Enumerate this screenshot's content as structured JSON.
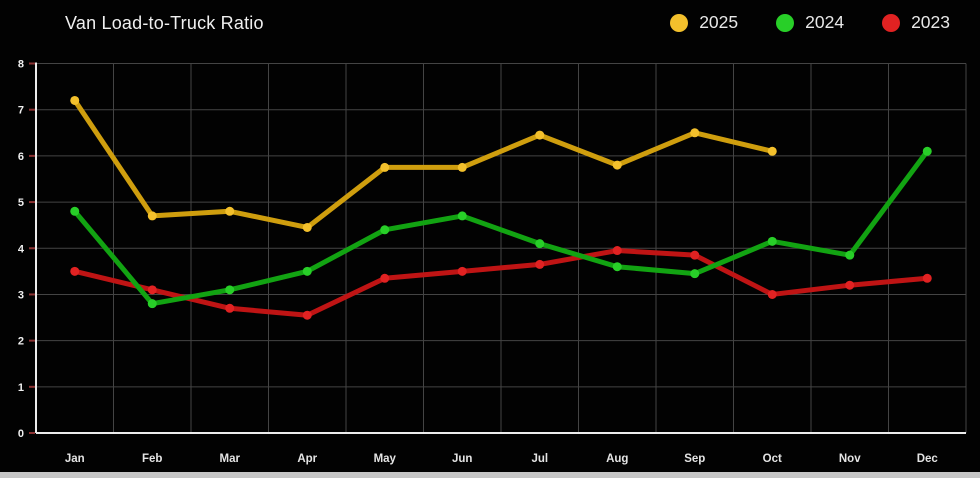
{
  "header": {
    "title": "Van Load-to-Truck Ratio"
  },
  "chart_data": {
    "type": "line",
    "title": "Van Load-to-Truck Ratio",
    "x": [
      "Jan",
      "Feb",
      "Mar",
      "Apr",
      "May",
      "Jun",
      "Jul",
      "Aug",
      "Sep",
      "Oct",
      "Nov",
      "Dec"
    ],
    "series": [
      {
        "name": "2025",
        "line_color": "#cf9e0e",
        "point_color": "#f3c02c",
        "values": [
          7.2,
          4.7,
          4.8,
          4.45,
          5.75,
          5.75,
          6.45,
          5.8,
          6.5,
          6.1,
          null,
          null
        ]
      },
      {
        "name": "2024",
        "line_color": "#12a312",
        "point_color": "#28cf28",
        "values": [
          4.8,
          2.8,
          3.1,
          3.5,
          4.4,
          4.7,
          4.1,
          3.6,
          3.45,
          4.15,
          3.85,
          6.1
        ]
      },
      {
        "name": "2023",
        "line_color": "#bf1414",
        "point_color": "#e12222",
        "values": [
          3.5,
          3.1,
          2.7,
          2.55,
          3.35,
          3.5,
          3.65,
          3.95,
          3.85,
          3.0,
          3.2,
          3.35
        ]
      }
    ],
    "ylim": [
      0,
      8
    ],
    "yticks": [
      0,
      1,
      2,
      3,
      4,
      5,
      6,
      7,
      8
    ],
    "grid": true,
    "legend_position": "top-right",
    "xlabel": "",
    "ylabel": ""
  },
  "colors": {
    "background": "#020202",
    "gridline": "#444444",
    "axis": "#ececec",
    "tick_mark": "#8b3232",
    "bottom_strip": "#c6c6c6"
  }
}
